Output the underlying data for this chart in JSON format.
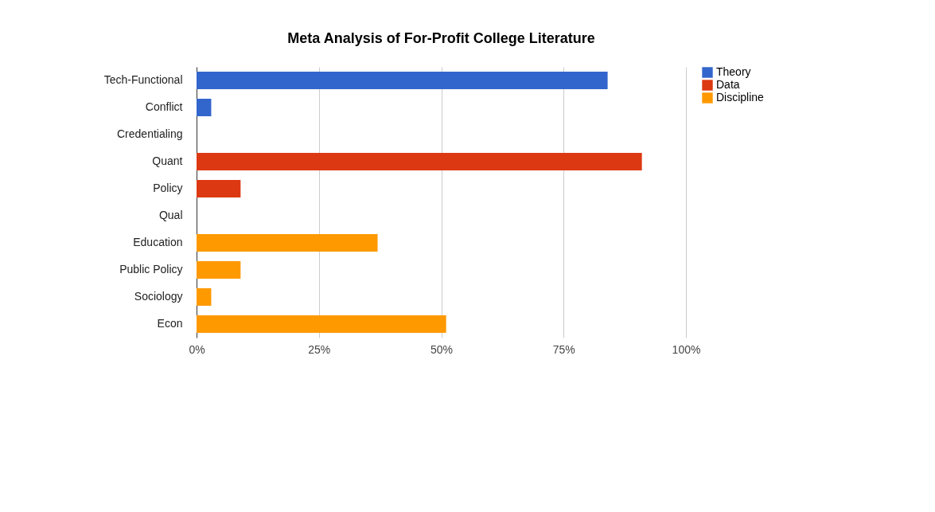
{
  "chart_data": {
    "type": "bar",
    "orientation": "horizontal",
    "title": "Meta Analysis of For-Profit College Literature",
    "categories": [
      "Tech-Functional",
      "Conflict",
      "Credentialing",
      "Quant",
      "Policy",
      "Qual",
      "Education",
      "Public Policy",
      "Sociology",
      "Econ"
    ],
    "series": [
      {
        "name": "Theory",
        "color": "#3366cc",
        "values": [
          84,
          3,
          0,
          null,
          null,
          null,
          null,
          null,
          null,
          null
        ]
      },
      {
        "name": "Data",
        "color": "#dc3912",
        "values": [
          null,
          null,
          null,
          91,
          9,
          0,
          null,
          null,
          null,
          null
        ]
      },
      {
        "name": "Discipline",
        "color": "#ff9900",
        "values": [
          null,
          null,
          null,
          null,
          null,
          null,
          37,
          9,
          3,
          51
        ]
      }
    ],
    "xlim": [
      0,
      100
    ],
    "xticks": [
      {
        "value": 0,
        "label": "0%"
      },
      {
        "value": 25,
        "label": "25%"
      },
      {
        "value": 50,
        "label": "50%"
      },
      {
        "value": 75,
        "label": "75%"
      },
      {
        "value": 100,
        "label": "100%"
      }
    ],
    "grid": "x",
    "legend": "top right"
  }
}
